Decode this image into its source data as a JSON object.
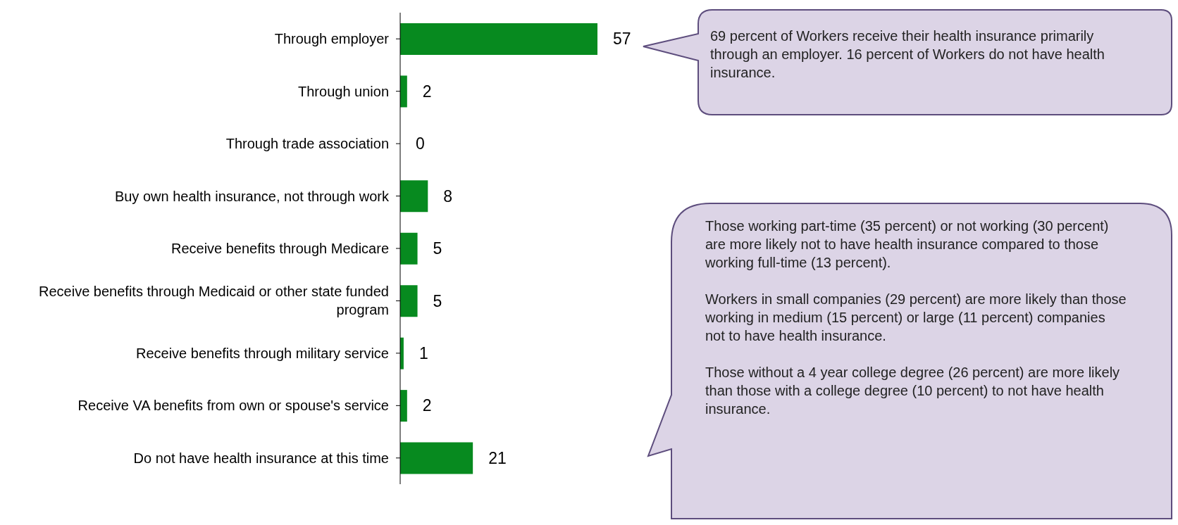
{
  "chart_data": {
    "type": "bar",
    "orientation": "horizontal",
    "categories": [
      "Through employer",
      "Through union",
      "Through trade association",
      "Buy own health insurance, not through work",
      "Receive benefits through Medicare",
      "Receive benefits through Medicaid or other state funded program",
      "Receive benefits through military service",
      "Receive VA benefits from own or spouse's service",
      "Do not have health insurance at this time"
    ],
    "values": [
      57,
      2,
      0,
      8,
      5,
      5,
      1,
      2,
      21
    ],
    "color": "#078a1f",
    "data_labels": true,
    "annotations": [
      "69 percent of Workers receive their health insurance primarily through an employer. 16 percent of Workers do not have health insurance.",
      "Those working part-time (35 percent) or not working (30 percent) are more likely not to have health insurance compared to those working full-time (13 percent).",
      "Workers in small companies (29 percent) are more likely than those working in medium (15 percent) or large (11 percent) companies not to have health insurance.",
      "Those without a 4 year college degree (26 percent) are more likely than those with a college degree (10 percent) to not have health insurance."
    ]
  }
}
